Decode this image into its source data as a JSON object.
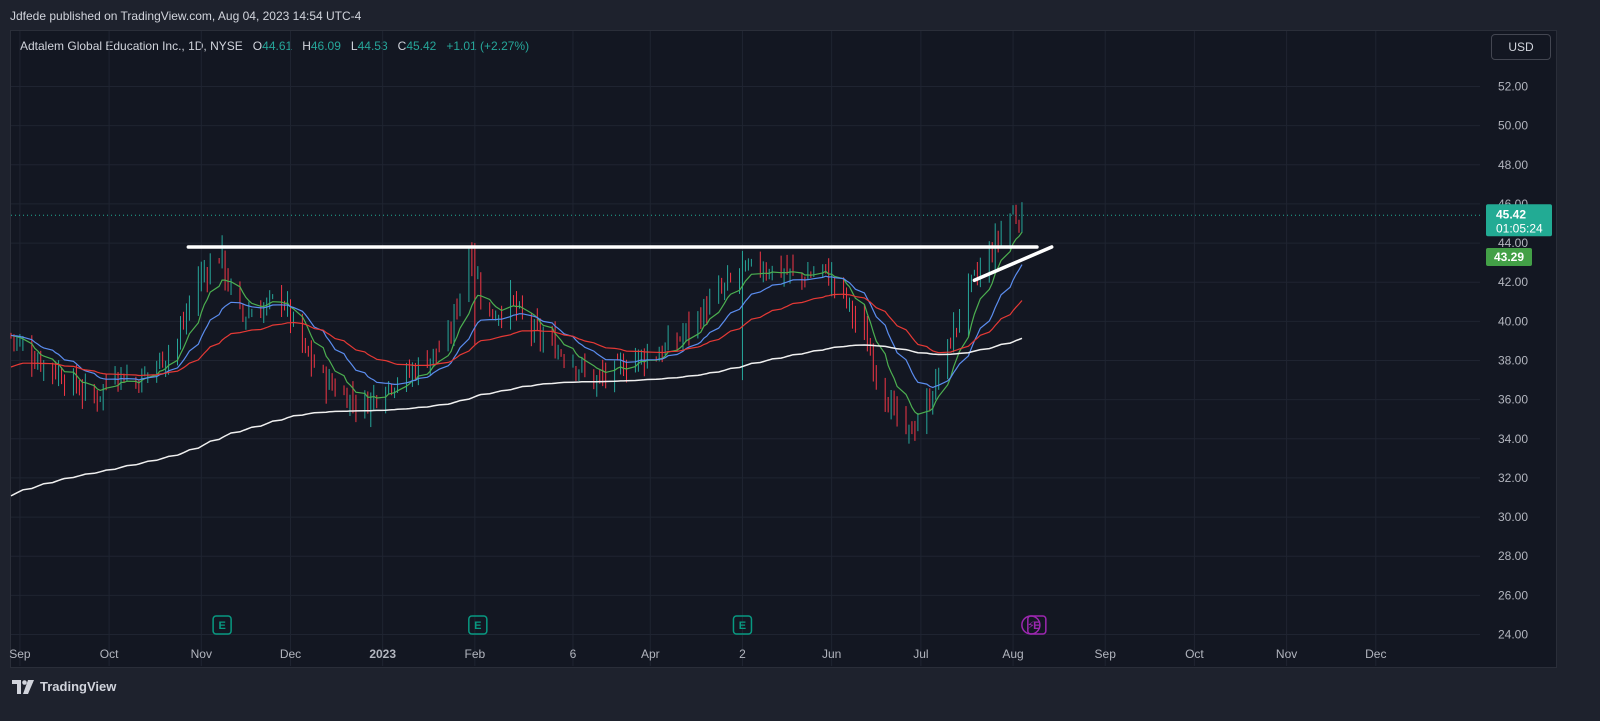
{
  "header": {
    "publisher": "Jdfede published on TradingView.com, Aug 04, 2023 14:54 UTC-4"
  },
  "legend": {
    "symbol": "Adtalem Global Education Inc., 1D, NYSE",
    "open_label": "O",
    "open": "44.61",
    "high_label": "H",
    "high": "46.09",
    "low_label": "L",
    "low": "44.53",
    "close_label": "C",
    "close": "45.42",
    "change": "+1.01 (+2.27%)"
  },
  "currency": "USD",
  "footer": {
    "brand": "TradingView"
  },
  "colors": {
    "up": "#26a69a",
    "down": "#f23645",
    "background": "#131722",
    "ema_fast": "#4caf50",
    "ema_mid": "#5b8def",
    "ema_slow": "#e53935",
    "ema_long": "#f0f0f0",
    "price_label": "#22ab94",
    "earnings_icon": "#089981",
    "dividend_icon": "#9c27b0"
  },
  "chart_data": {
    "type": "candlestick",
    "y_axis": {
      "min": 24,
      "max": 52,
      "ticks": [
        "52.00",
        "50.00",
        "48.00",
        "46.00",
        "44.00",
        "42.00",
        "40.00",
        "38.00",
        "36.00",
        "34.00",
        "32.00",
        "30.00",
        "28.00",
        "26.00",
        "24.00"
      ]
    },
    "x_axis": {
      "ticks": [
        "Sep",
        "Oct",
        "Nov",
        "Dec",
        "2023",
        "Feb",
        "6",
        "Apr",
        "2",
        "Jun",
        "Jul",
        "Aug",
        "Sep",
        "Oct",
        "Nov",
        "Dec"
      ]
    },
    "last_price": "45.42",
    "countdown": "01:05:24",
    "secondary_price": "43.29",
    "grid": true,
    "closes_anchor": [
      [
        "2022-08-29",
        39.3
      ],
      [
        "2022-09-05",
        38.2
      ],
      [
        "2022-09-12",
        37.6
      ],
      [
        "2022-09-19",
        36.8
      ],
      [
        "2022-09-26",
        36.0
      ],
      [
        "2022-10-03",
        37.5
      ],
      [
        "2022-10-10",
        36.9
      ],
      [
        "2022-10-17",
        37.8
      ],
      [
        "2022-10-24",
        39.0
      ],
      [
        "2022-10-31",
        42.2
      ],
      [
        "2022-11-07",
        43.3
      ],
      [
        "2022-11-14",
        40.3
      ],
      [
        "2022-11-21",
        40.6
      ],
      [
        "2022-11-28",
        41.3
      ],
      [
        "2022-12-05",
        38.6
      ],
      [
        "2022-12-12",
        37.1
      ],
      [
        "2022-12-19",
        36.2
      ],
      [
        "2022-12-26",
        35.7
      ],
      [
        "2023-01-02",
        36.8
      ],
      [
        "2023-01-09",
        37.2
      ],
      [
        "2023-01-16",
        38.1
      ],
      [
        "2023-01-23",
        38.9
      ],
      [
        "2023-01-30",
        43.5
      ],
      [
        "2023-02-06",
        40.2
      ],
      [
        "2023-02-13",
        41.0
      ],
      [
        "2023-02-20",
        39.5
      ],
      [
        "2023-02-27",
        38.8
      ],
      [
        "2023-03-06",
        38.0
      ],
      [
        "2023-03-13",
        36.9
      ],
      [
        "2023-03-20",
        37.4
      ],
      [
        "2023-03-27",
        38.2
      ],
      [
        "2023-04-03",
        38.3
      ],
      [
        "2023-04-10",
        39.0
      ],
      [
        "2023-04-17",
        40.2
      ],
      [
        "2023-04-24",
        41.4
      ],
      [
        "2023-05-01",
        42.4
      ],
      [
        "2023-05-08",
        42.8
      ],
      [
        "2023-05-15",
        42.6
      ],
      [
        "2023-05-22",
        42.2
      ],
      [
        "2023-05-29",
        42.7
      ],
      [
        "2023-06-05",
        41.3
      ],
      [
        "2023-06-12",
        39.2
      ],
      [
        "2023-06-19",
        36.2
      ],
      [
        "2023-06-26",
        34.1
      ],
      [
        "2023-07-03",
        35.6
      ],
      [
        "2023-07-10",
        38.6
      ],
      [
        "2023-07-17",
        41.6
      ],
      [
        "2023-07-24",
        43.3
      ],
      [
        "2023-07-31",
        45.42
      ]
    ],
    "series": [
      {
        "name": "",
        "kind": "ema-fast"
      },
      {
        "name": "",
        "kind": "ema-mid"
      },
      {
        "name": "",
        "kind": "ema-slow"
      },
      {
        "name": "",
        "kind": "ema-long"
      }
    ],
    "annotations": [
      {
        "type": "horizontal-line",
        "y": 43.8,
        "x_from": "2022-10-31",
        "x_to": "2023-08-04"
      },
      {
        "type": "trend-line",
        "from": [
          "2023-07-19",
          42.1
        ],
        "to": [
          "2023-08-14",
          43.8
        ]
      }
    ],
    "events": [
      {
        "label": "E",
        "date": "2022-11-08",
        "kind": "earnings"
      },
      {
        "label": "E",
        "date": "2023-02-02",
        "kind": "earnings"
      },
      {
        "label": "E",
        "date": "2023-05-02",
        "kind": "earnings"
      },
      {
        "label": "⚡",
        "date": "2023-08-07",
        "kind": "split"
      },
      {
        "label": "E",
        "date": "2023-08-09",
        "kind": "earnings"
      }
    ]
  }
}
